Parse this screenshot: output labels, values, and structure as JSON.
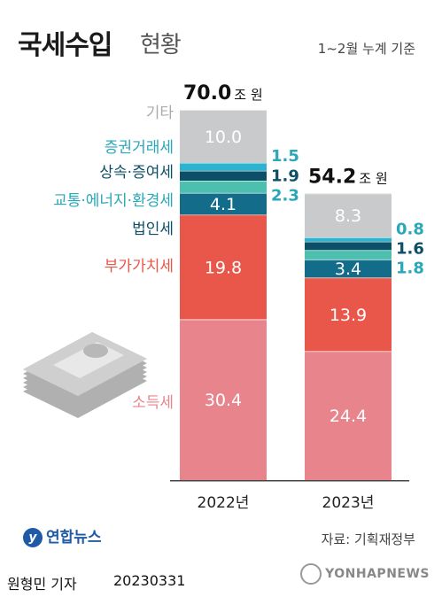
{
  "header": {
    "title": "국세수입",
    "subtitle": "현황",
    "basis": "1~2월 누계 기준"
  },
  "chart_data": {
    "type": "bar",
    "stacked": true,
    "unit": "조 원",
    "categories": [
      "2022년",
      "2023년"
    ],
    "totals": [
      "70.0",
      "54.2"
    ],
    "series": [
      {
        "name": "소득세",
        "values": [
          30.4,
          24.4
        ],
        "color": "#e8858c"
      },
      {
        "name": "부가가치세",
        "values": [
          19.8,
          13.9
        ],
        "color": "#e8574a"
      },
      {
        "name": "법인세",
        "values": [
          4.1,
          3.4
        ],
        "color": "#126c8a"
      },
      {
        "name": "교통·에너지·환경세",
        "values": [
          2.3,
          1.8
        ],
        "color": "#4cbfae"
      },
      {
        "name": "상속·증여세",
        "values": [
          1.9,
          1.6
        ],
        "color": "#0d4f66"
      },
      {
        "name": "증권거래세",
        "values": [
          1.5,
          0.8
        ],
        "color": "#2bb3cf"
      },
      {
        "name": "기타",
        "values": [
          10.0,
          8.3
        ],
        "color": "#c8cacc"
      }
    ],
    "label_colors": {
      "소득세": "#e8858c",
      "부가가치세": "#e8574a",
      "법인세": "#0d4f66",
      "교통·에너지·환경세": "#2aa7b9",
      "상속·증여세": "#0d4f66",
      "증권거래세": "#2aa7b9",
      "기타": "#a9abad"
    }
  },
  "footer": {
    "logo": "연합뉴스",
    "source": "자료: 기획재정부",
    "reporter": "원형민 기자",
    "date": "20230331",
    "watermark": "YONHAPNEWS"
  }
}
